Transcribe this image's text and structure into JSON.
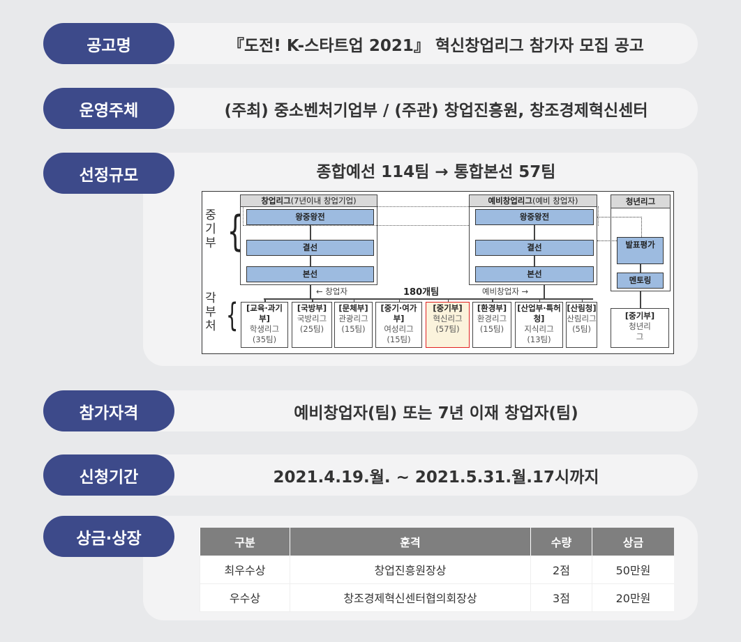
{
  "rows": [
    {
      "label": "공고명",
      "value": "『도전! K-스타트업 2021』 혁신창업리그 참가자 모집 공고"
    },
    {
      "label": "운영주체",
      "value": "(주최) 중소벤처기업부 / (주관) 창업진흥원, 창조경제혁신센터"
    },
    {
      "label": "선정규모",
      "value": "종합예선 114팀 → 통합본선 57팀"
    },
    {
      "label": "참가자격",
      "value": "예비창업자(팀) 또는 7년 이재 창업자(팀)"
    },
    {
      "label": "신청기간",
      "value": "2021.4.19.월. ~ 2021.5.31.월.17시까지"
    },
    {
      "label": "상금·상장",
      "value": ""
    }
  ],
  "diagram": {
    "side_top": "중기부",
    "side_bottom": "각부처",
    "league1": {
      "title": "창업리그",
      "sub": "(7년이내 창업기업)"
    },
    "league2": {
      "title": "예비창업리그",
      "sub": "(예비 창업자)"
    },
    "league3": {
      "title": "청년리그"
    },
    "stages": [
      "왕중왕전",
      "결선",
      "본선"
    ],
    "youth_stages": [
      "발표평가",
      "멘토링"
    ],
    "arrow_left": "← 창업자",
    "total": "180개팀",
    "arrow_right": "예비창업자 →",
    "ministries": [
      {
        "dept": "[교육·과기부]",
        "name": "학생리그",
        "count": "(35팀)"
      },
      {
        "dept": "[국방부]",
        "name": "국방리그",
        "count": "(25팀)"
      },
      {
        "dept": "[문체부]",
        "name": "관광리그",
        "count": "(15팀)"
      },
      {
        "dept": "[중기·여가부]",
        "name": "여성리그",
        "count": "(15팀)"
      },
      {
        "dept": "[중기부]",
        "name": "혁신리그",
        "count": "(57팀)"
      },
      {
        "dept": "[환경부]",
        "name": "환경리그",
        "count": "(15팀)"
      },
      {
        "dept": "[산업부·특허청]",
        "name": "지식리그",
        "count": "(13팀)"
      },
      {
        "dept": "[산림청]",
        "name": "산림리그",
        "count": "(5팀)"
      }
    ],
    "youth_box": {
      "dept": "[중기부]",
      "name": "청년리그"
    }
  },
  "awards": {
    "headers": [
      "구분",
      "훈격",
      "수량",
      "상금"
    ],
    "rows": [
      [
        "최우수상",
        "창업진흥원장상",
        "2점",
        "50만원"
      ],
      [
        "우수상",
        "창조경제혁신센터협의회장상",
        "3점",
        "20만원"
      ]
    ]
  },
  "colors": {
    "pill": "#3d4a8a",
    "highlight_border": "#e02020",
    "highlight_bg": "#fbf3dc",
    "stage_blue": "#9dbbe0"
  }
}
